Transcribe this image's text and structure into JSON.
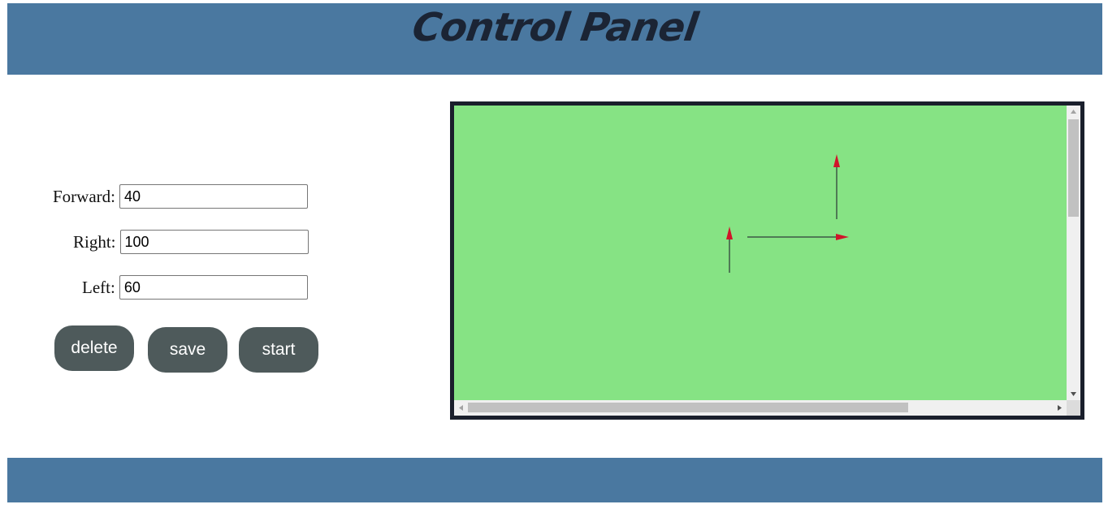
{
  "header": {
    "title": "Control Panel"
  },
  "form": {
    "forward": {
      "label": "Forward:",
      "value": "40"
    },
    "right": {
      "label": "Right:",
      "value": "100"
    },
    "left": {
      "label": "Left:",
      "value": "60"
    }
  },
  "buttons": {
    "delete_label": "delete",
    "save_label": "save",
    "start_label": "start"
  },
  "canvas": {
    "background_color": "#86e384",
    "line_color": "#4f7a55",
    "arrowhead_color": "#d0152a",
    "arrows": [
      {
        "name": "arrow-up-short",
        "direction": "up"
      },
      {
        "name": "arrow-right",
        "direction": "right"
      },
      {
        "name": "arrow-up-tall",
        "direction": "up"
      }
    ]
  },
  "colors": {
    "header_bar": "#4a78a0",
    "button": "#4e5a5b",
    "frame_border": "#1a1f2c"
  }
}
